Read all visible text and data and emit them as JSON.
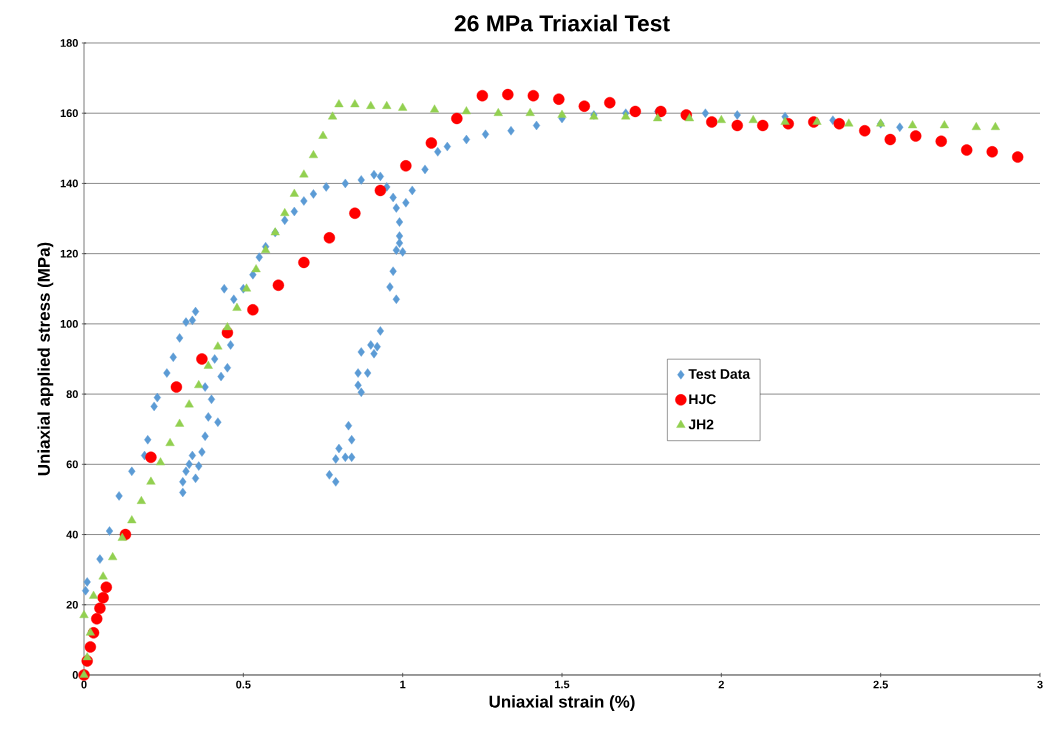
{
  "chart_data": {
    "type": "scatter",
    "title": "26 MPa Triaxial Test",
    "xlabel": "Uniaxial strain (%)",
    "ylabel": "Uniaxial applied stress (MPa)",
    "xlim": [
      0,
      3
    ],
    "ylim": [
      0,
      180
    ],
    "xticks": [
      0,
      0.5,
      1,
      1.5,
      2,
      2.5,
      3
    ],
    "yticks": [
      0,
      20,
      40,
      60,
      80,
      100,
      120,
      140,
      160,
      180
    ],
    "grid": "y",
    "legend": "right",
    "series": [
      {
        "name": "Test Data",
        "color": "#5b9bd5",
        "marker": "diamond",
        "x": [
          0.005,
          0.01,
          0.05,
          0.08,
          0.11,
          0.15,
          0.19,
          0.2,
          0.22,
          0.23,
          0.26,
          0.28,
          0.3,
          0.32,
          0.34,
          0.35,
          0.31,
          0.31,
          0.32,
          0.33,
          0.34,
          0.35,
          0.36,
          0.37,
          0.38,
          0.39,
          0.4,
          0.38,
          0.41,
          0.42,
          0.43,
          0.44,
          0.45,
          0.46,
          0.47,
          0.5,
          0.53,
          0.55,
          0.57,
          0.6,
          0.63,
          0.66,
          0.69,
          0.72,
          0.76,
          0.82,
          0.87,
          0.91,
          0.93,
          0.95,
          0.97,
          0.98,
          0.99,
          0.99,
          0.98,
          0.99,
          1.0,
          0.97,
          0.96,
          0.98,
          0.93,
          0.92,
          0.91,
          0.9,
          0.87,
          0.89,
          0.86,
          0.86,
          0.87,
          0.83,
          0.84,
          0.8,
          0.82,
          0.84,
          0.79,
          0.77,
          0.79,
          1.01,
          1.03,
          1.07,
          1.11,
          1.14,
          1.2,
          1.26,
          1.34,
          1.42,
          1.5,
          1.6,
          1.7,
          1.8,
          1.95,
          2.05,
          2.2,
          2.35,
          2.5,
          2.56
        ],
        "values": [
          24,
          26.5,
          33,
          41,
          51,
          58,
          62.5,
          67,
          76.5,
          79,
          86,
          90.5,
          96,
          100.5,
          101,
          103.5,
          52,
          55,
          58,
          60,
          62.5,
          56,
          59.5,
          63.5,
          68,
          73.5,
          78.5,
          82,
          90,
          72,
          85,
          110,
          87.5,
          94,
          107,
          110,
          114,
          119,
          122,
          126,
          129.5,
          132,
          135,
          137,
          139,
          140,
          141,
          142.5,
          142,
          139,
          136,
          133,
          129,
          125,
          121,
          123,
          120.5,
          115,
          110.5,
          107,
          98,
          93.5,
          91.5,
          94,
          92,
          86,
          86,
          82.5,
          80.5,
          71,
          67,
          64.5,
          62,
          62,
          61.5,
          57,
          55,
          134.5,
          138,
          144,
          149,
          150.5,
          152.5,
          154,
          155,
          156.5,
          158.5,
          159.5,
          160,
          160.5,
          160,
          159.5,
          159,
          158,
          157,
          156
        ]
      },
      {
        "name": "HJC",
        "color": "#ff0000",
        "marker": "circle",
        "x": [
          0,
          0.01,
          0.02,
          0.03,
          0.04,
          0.05,
          0.06,
          0.07,
          0.13,
          0.21,
          0.29,
          0.37,
          0.45,
          0.53,
          0.61,
          0.69,
          0.77,
          0.85,
          0.93,
          1.01,
          1.09,
          1.17,
          1.25,
          1.33,
          1.41,
          1.49,
          1.57,
          1.65,
          1.73,
          1.81,
          1.89,
          1.97,
          2.05,
          2.13,
          2.21,
          2.29,
          2.37,
          2.45,
          2.53,
          2.61,
          2.69,
          2.77,
          2.85,
          2.93
        ],
        "values": [
          0,
          4,
          8,
          12,
          16,
          19,
          22,
          25,
          40,
          62,
          82,
          90,
          97.5,
          104,
          111,
          117.5,
          124.5,
          131.5,
          138,
          145,
          151.5,
          158.5,
          165,
          165.3,
          165,
          164,
          162,
          163,
          160.5,
          160.5,
          159.5,
          157.5,
          156.5,
          156.5,
          157,
          157.5,
          157,
          155,
          152.5,
          153.5,
          152,
          149.5,
          149,
          147.5
        ]
      },
      {
        "name": "JH2",
        "color": "#92d050",
        "marker": "triangle",
        "x": [
          0,
          0.01,
          0.02,
          0,
          0.03,
          0.06,
          0.09,
          0.12,
          0.15,
          0.18,
          0.21,
          0.24,
          0.27,
          0.3,
          0.33,
          0.36,
          0.39,
          0.42,
          0.45,
          0.48,
          0.51,
          0.54,
          0.57,
          0.6,
          0.63,
          0.66,
          0.69,
          0.72,
          0.75,
          0.78,
          0.8,
          0.85,
          0.9,
          0.95,
          1.0,
          1.1,
          1.2,
          1.3,
          1.4,
          1.5,
          1.6,
          1.7,
          1.8,
          1.9,
          2.0,
          2.1,
          2.2,
          2.3,
          2.4,
          2.5,
          2.6,
          2.7,
          2.8,
          2.86
        ],
        "values": [
          0,
          5,
          12,
          17,
          22.5,
          28,
          33.5,
          39,
          44,
          49.5,
          55,
          60.5,
          66,
          71.5,
          77,
          82.5,
          88,
          93.5,
          99,
          104.5,
          110,
          115.5,
          121,
          126,
          131.5,
          137,
          142.5,
          148,
          153.5,
          159,
          162.5,
          162.5,
          162,
          162,
          161.5,
          161,
          160.5,
          160,
          160,
          159.5,
          159,
          159,
          158.5,
          158.5,
          158,
          158,
          157.5,
          157.5,
          157,
          157,
          156.5,
          156.5,
          156,
          156
        ]
      }
    ]
  }
}
